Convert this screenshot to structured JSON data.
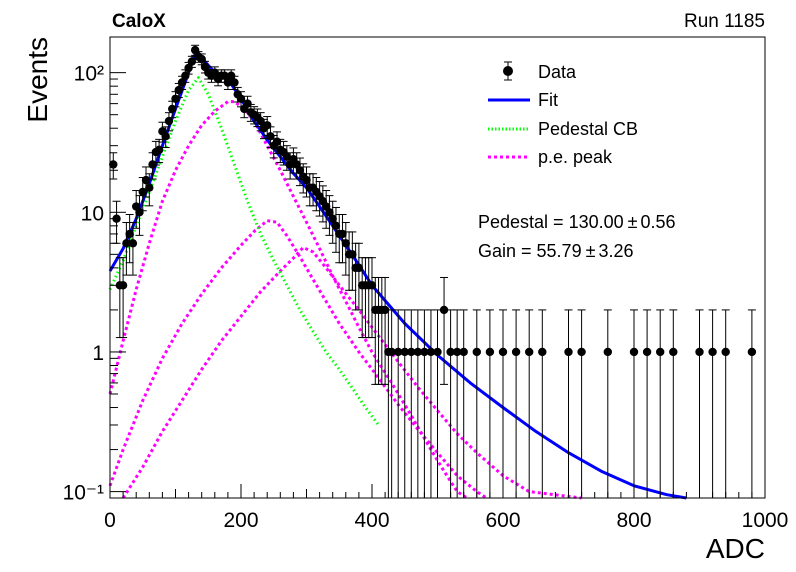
{
  "header": {
    "experiment": "CaloX",
    "run": "Run 1185"
  },
  "stats": {
    "pedestal": "Pedestal = 130.00",
    "pedestal_err": "0.56",
    "gain": "Gain = 55.79",
    "gain_err": "3.26",
    "pm": "±"
  },
  "chart_data": {
    "type": "scatter",
    "title": "",
    "xlabel": "ADC",
    "ylabel": "Events",
    "xlim": [
      0,
      1000
    ],
    "ylim": [
      0.09,
      180
    ],
    "yscale": "log",
    "grid": false,
    "legend_position": "top-right",
    "x_ticks": [
      0,
      200,
      400,
      600,
      800,
      1000
    ],
    "x_tick_labels": [
      "0",
      "200",
      "400",
      "600",
      "800",
      "1000"
    ],
    "y_ticks": [
      0.1,
      1,
      10,
      100
    ],
    "y_tick_labels": [
      "10⁻¹",
      "1",
      "10",
      "10²"
    ],
    "legend": [
      {
        "label": "Data",
        "style": "marker",
        "color": "#000000"
      },
      {
        "label": "Fit",
        "style": "solid",
        "color": "#0000ff"
      },
      {
        "label": "Pedestal CB",
        "style": "dotted",
        "color": "#00ff00"
      },
      {
        "label": "p.e. peak",
        "style": "dotted",
        "color": "#ff00ff"
      }
    ],
    "data_points": [
      [
        5,
        22
      ],
      [
        10,
        9
      ],
      [
        15,
        3
      ],
      [
        20,
        3
      ],
      [
        25,
        6
      ],
      [
        30,
        7
      ],
      [
        35,
        6
      ],
      [
        40,
        11
      ],
      [
        45,
        10
      ],
      [
        50,
        14
      ],
      [
        55,
        17
      ],
      [
        60,
        15
      ],
      [
        65,
        22
      ],
      [
        70,
        27
      ],
      [
        75,
        28
      ],
      [
        80,
        38
      ],
      [
        85,
        35
      ],
      [
        90,
        45
      ],
      [
        95,
        55
      ],
      [
        100,
        65
      ],
      [
        105,
        75
      ],
      [
        110,
        85
      ],
      [
        115,
        95
      ],
      [
        120,
        108
      ],
      [
        125,
        120
      ],
      [
        130,
        145
      ],
      [
        135,
        130
      ],
      [
        140,
        125
      ],
      [
        145,
        110
      ],
      [
        150,
        100
      ],
      [
        155,
        95
      ],
      [
        160,
        100
      ],
      [
        165,
        90
      ],
      [
        170,
        95
      ],
      [
        175,
        95
      ],
      [
        180,
        85
      ],
      [
        185,
        95
      ],
      [
        190,
        85
      ],
      [
        195,
        70
      ],
      [
        200,
        65
      ],
      [
        205,
        55
      ],
      [
        210,
        60
      ],
      [
        215,
        52
      ],
      [
        220,
        50
      ],
      [
        225,
        48
      ],
      [
        230,
        45
      ],
      [
        235,
        40
      ],
      [
        240,
        42
      ],
      [
        245,
        35
      ],
      [
        250,
        30
      ],
      [
        255,
        32
      ],
      [
        260,
        28
      ],
      [
        265,
        27
      ],
      [
        270,
        25
      ],
      [
        275,
        22
      ],
      [
        280,
        24
      ],
      [
        285,
        22
      ],
      [
        290,
        20
      ],
      [
        295,
        18
      ],
      [
        300,
        17
      ],
      [
        305,
        15
      ],
      [
        310,
        15
      ],
      [
        315,
        14
      ],
      [
        320,
        13
      ],
      [
        325,
        12
      ],
      [
        330,
        11
      ],
      [
        335,
        10
      ],
      [
        340,
        9
      ],
      [
        345,
        8
      ],
      [
        350,
        7
      ],
      [
        355,
        7
      ],
      [
        360,
        6
      ],
      [
        365,
        5
      ],
      [
        370,
        5
      ],
      [
        375,
        4
      ],
      [
        380,
        4
      ],
      [
        385,
        3
      ],
      [
        390,
        3
      ],
      [
        395,
        3
      ],
      [
        400,
        3
      ],
      [
        405,
        2
      ],
      [
        410,
        2
      ],
      [
        415,
        2
      ],
      [
        420,
        2
      ],
      [
        425,
        1
      ],
      [
        430,
        1
      ],
      [
        440,
        1
      ],
      [
        450,
        1
      ],
      [
        460,
        1
      ],
      [
        470,
        1
      ],
      [
        480,
        1
      ],
      [
        490,
        1
      ],
      [
        500,
        1
      ],
      [
        510,
        2
      ],
      [
        520,
        1
      ],
      [
        530,
        1
      ],
      [
        540,
        1
      ],
      [
        560,
        1
      ],
      [
        580,
        1
      ],
      [
        600,
        1
      ],
      [
        620,
        1
      ],
      [
        640,
        1
      ],
      [
        660,
        1
      ],
      [
        700,
        1
      ],
      [
        720,
        1
      ],
      [
        760,
        1
      ],
      [
        800,
        1
      ],
      [
        820,
        1
      ],
      [
        840,
        1
      ],
      [
        860,
        1
      ],
      [
        900,
        1
      ],
      [
        920,
        1
      ],
      [
        940,
        1
      ],
      [
        980,
        1
      ]
    ],
    "curves": {
      "fit": [
        [
          0,
          3.8
        ],
        [
          20,
          5.5
        ],
        [
          40,
          9
        ],
        [
          60,
          16
        ],
        [
          80,
          30
        ],
        [
          100,
          55
        ],
        [
          120,
          100
        ],
        [
          132,
          145
        ],
        [
          145,
          120
        ],
        [
          160,
          100
        ],
        [
          180,
          90
        ],
        [
          200,
          65
        ],
        [
          220,
          45
        ],
        [
          240,
          33
        ],
        [
          260,
          25
        ],
        [
          280,
          19
        ],
        [
          300,
          15
        ],
        [
          320,
          11
        ],
        [
          340,
          8
        ],
        [
          360,
          5.8
        ],
        [
          380,
          4.2
        ],
        [
          400,
          3
        ],
        [
          450,
          1.6
        ],
        [
          500,
          0.95
        ],
        [
          550,
          0.6
        ],
        [
          600,
          0.4
        ],
        [
          650,
          0.27
        ],
        [
          700,
          0.19
        ],
        [
          750,
          0.14
        ],
        [
          800,
          0.11
        ],
        [
          850,
          0.095
        ],
        [
          880,
          0.09
        ]
      ],
      "pedestal_cb": [
        [
          0,
          2.8
        ],
        [
          20,
          4.5
        ],
        [
          40,
          8
        ],
        [
          60,
          14
        ],
        [
          80,
          25
        ],
        [
          100,
          45
        ],
        [
          120,
          75
        ],
        [
          135,
          92
        ],
        [
          150,
          70
        ],
        [
          170,
          40
        ],
        [
          190,
          22
        ],
        [
          210,
          12
        ],
        [
          230,
          7
        ],
        [
          250,
          4.5
        ],
        [
          270,
          3
        ],
        [
          290,
          2
        ],
        [
          310,
          1.4
        ],
        [
          330,
          1
        ],
        [
          350,
          0.75
        ],
        [
          370,
          0.55
        ],
        [
          390,
          0.4
        ],
        [
          410,
          0.3
        ]
      ],
      "pe_peak_1": [
        [
          0,
          0.5
        ],
        [
          20,
          1.2
        ],
        [
          40,
          2.8
        ],
        [
          60,
          6
        ],
        [
          80,
          12
        ],
        [
          100,
          20
        ],
        [
          120,
          30
        ],
        [
          140,
          42
        ],
        [
          160,
          53
        ],
        [
          180,
          62
        ],
        [
          190,
          62
        ],
        [
          205,
          55
        ],
        [
          220,
          45
        ],
        [
          240,
          30
        ],
        [
          260,
          20
        ],
        [
          280,
          13
        ],
        [
          300,
          8.5
        ],
        [
          320,
          5.5
        ],
        [
          340,
          3.5
        ],
        [
          360,
          2.3
        ],
        [
          380,
          1.5
        ],
        [
          400,
          1
        ],
        [
          430,
          0.6
        ],
        [
          460,
          0.35
        ],
        [
          490,
          0.2
        ],
        [
          510,
          0.14
        ],
        [
          530,
          0.1
        ],
        [
          545,
          0.09
        ]
      ],
      "pe_peak_2": [
        [
          0,
          0.11
        ],
        [
          20,
          0.2
        ],
        [
          50,
          0.45
        ],
        [
          80,
          0.9
        ],
        [
          110,
          1.6
        ],
        [
          140,
          2.6
        ],
        [
          170,
          4
        ],
        [
          200,
          5.8
        ],
        [
          220,
          7.3
        ],
        [
          240,
          8.7
        ],
        [
          255,
          8.5
        ],
        [
          270,
          6.8
        ],
        [
          290,
          4.8
        ],
        [
          310,
          3.3
        ],
        [
          330,
          2.3
        ],
        [
          350,
          1.6
        ],
        [
          380,
          1
        ],
        [
          410,
          0.65
        ],
        [
          440,
          0.42
        ],
        [
          470,
          0.28
        ],
        [
          500,
          0.19
        ],
        [
          530,
          0.13
        ],
        [
          560,
          0.1
        ],
        [
          575,
          0.09
        ]
      ],
      "pe_peak_3": [
        [
          20,
          0.09
        ],
        [
          50,
          0.15
        ],
        [
          80,
          0.27
        ],
        [
          110,
          0.45
        ],
        [
          140,
          0.75
        ],
        [
          170,
          1.2
        ],
        [
          200,
          1.8
        ],
        [
          230,
          2.7
        ],
        [
          260,
          3.8
        ],
        [
          280,
          4.7
        ],
        [
          295,
          5.6
        ],
        [
          310,
          5.2
        ],
        [
          330,
          4
        ],
        [
          350,
          3
        ],
        [
          380,
          2
        ],
        [
          410,
          1.3
        ],
        [
          440,
          0.85
        ],
        [
          470,
          0.56
        ],
        [
          500,
          0.38
        ],
        [
          530,
          0.26
        ],
        [
          560,
          0.19
        ],
        [
          600,
          0.13
        ],
        [
          640,
          0.1
        ],
        [
          720,
          0.09
        ]
      ]
    }
  }
}
